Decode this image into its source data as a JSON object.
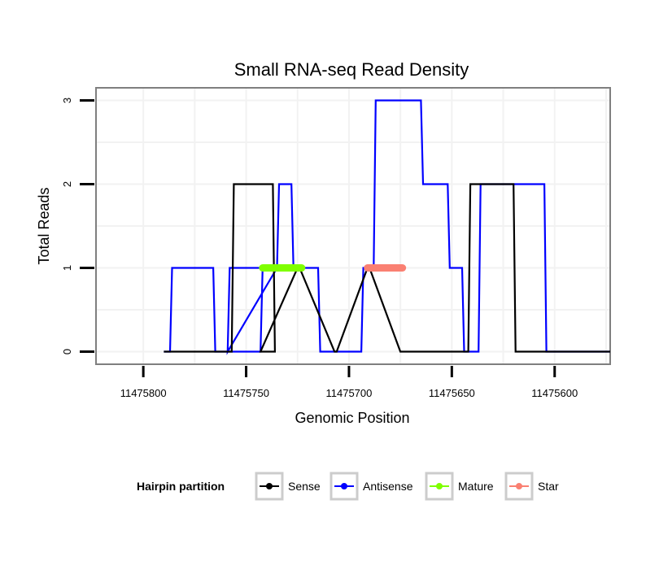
{
  "chart_data": {
    "type": "line",
    "title": "Small RNA-seq Read Density",
    "xlabel": "Genomic Position",
    "ylabel": "Total Reads",
    "x_reversed": true,
    "xlim": [
      11475823,
      11475573
    ],
    "ylim": [
      -0.15,
      3.15
    ],
    "x_ticks": [
      11475800,
      11475750,
      11475700,
      11475650,
      11475600
    ],
    "x_tick_labels": [
      "11475800",
      "11475750",
      "11475700",
      "11475650",
      "11475600"
    ],
    "y_ticks": [
      0,
      1,
      2,
      3
    ],
    "y_tick_labels": [
      "0",
      "1",
      "2",
      "3"
    ],
    "legend": {
      "title": "Hairpin partition",
      "position": "bottom",
      "entries": [
        {
          "key": "sense",
          "label": "Sense",
          "color": "#000000"
        },
        {
          "key": "antisense",
          "label": "Antisense",
          "color": "#0000ff"
        },
        {
          "key": "mature",
          "label": "Mature",
          "color": "#7fff00"
        },
        {
          "key": "star",
          "label": "Star",
          "color": "#fa8072"
        }
      ]
    },
    "series": [
      {
        "name": "Antisense",
        "color": "#0000ff",
        "x": [
          11475790,
          11475787,
          11475786,
          11475766,
          11475765,
          11475760,
          11475743,
          11475742,
          11475749,
          11475750,
          11475758,
          11475759,
          11475735,
          11475734,
          11475728,
          11475727,
          11475715,
          11475714,
          11475694,
          11475693,
          11475688,
          11475687,
          11475665,
          11475664,
          11475652,
          11475651,
          11475645,
          11475644,
          11475644,
          11475643,
          11475637,
          11475636,
          11475625,
          11475624,
          11475605,
          11475604,
          11475598,
          11475597,
          11475573
        ],
        "y": [
          0,
          0,
          1,
          1,
          0,
          0,
          0,
          1,
          1,
          1,
          1,
          0,
          1,
          2,
          2,
          1,
          1,
          0,
          0,
          1,
          1,
          3,
          3,
          2,
          2,
          1,
          1,
          0,
          0,
          0,
          0,
          2,
          2,
          2,
          2,
          0,
          0,
          0,
          0
        ]
      },
      {
        "name": "Sense",
        "color": "#000000",
        "x": [
          11475790,
          11475757,
          11475756,
          11475737,
          11475736,
          11475742,
          11475743,
          11475725,
          11475724,
          11475707,
          11475706,
          11475691,
          11475690,
          11475675,
          11475674,
          11475642,
          11475641,
          11475620,
          11475619,
          11475573
        ],
        "y": [
          0,
          0,
          2,
          2,
          0,
          0,
          0,
          1,
          1,
          0,
          0,
          1,
          1,
          0,
          0,
          0,
          2,
          2,
          0,
          0
        ]
      },
      {
        "name": "Mature",
        "color": "#7fff00",
        "x": [
          11475742,
          11475723
        ],
        "y": [
          1,
          1
        ]
      },
      {
        "name": "Star",
        "color": "#fa8072",
        "x": [
          11475691,
          11475674
        ],
        "y": [
          1,
          1
        ]
      }
    ]
  }
}
